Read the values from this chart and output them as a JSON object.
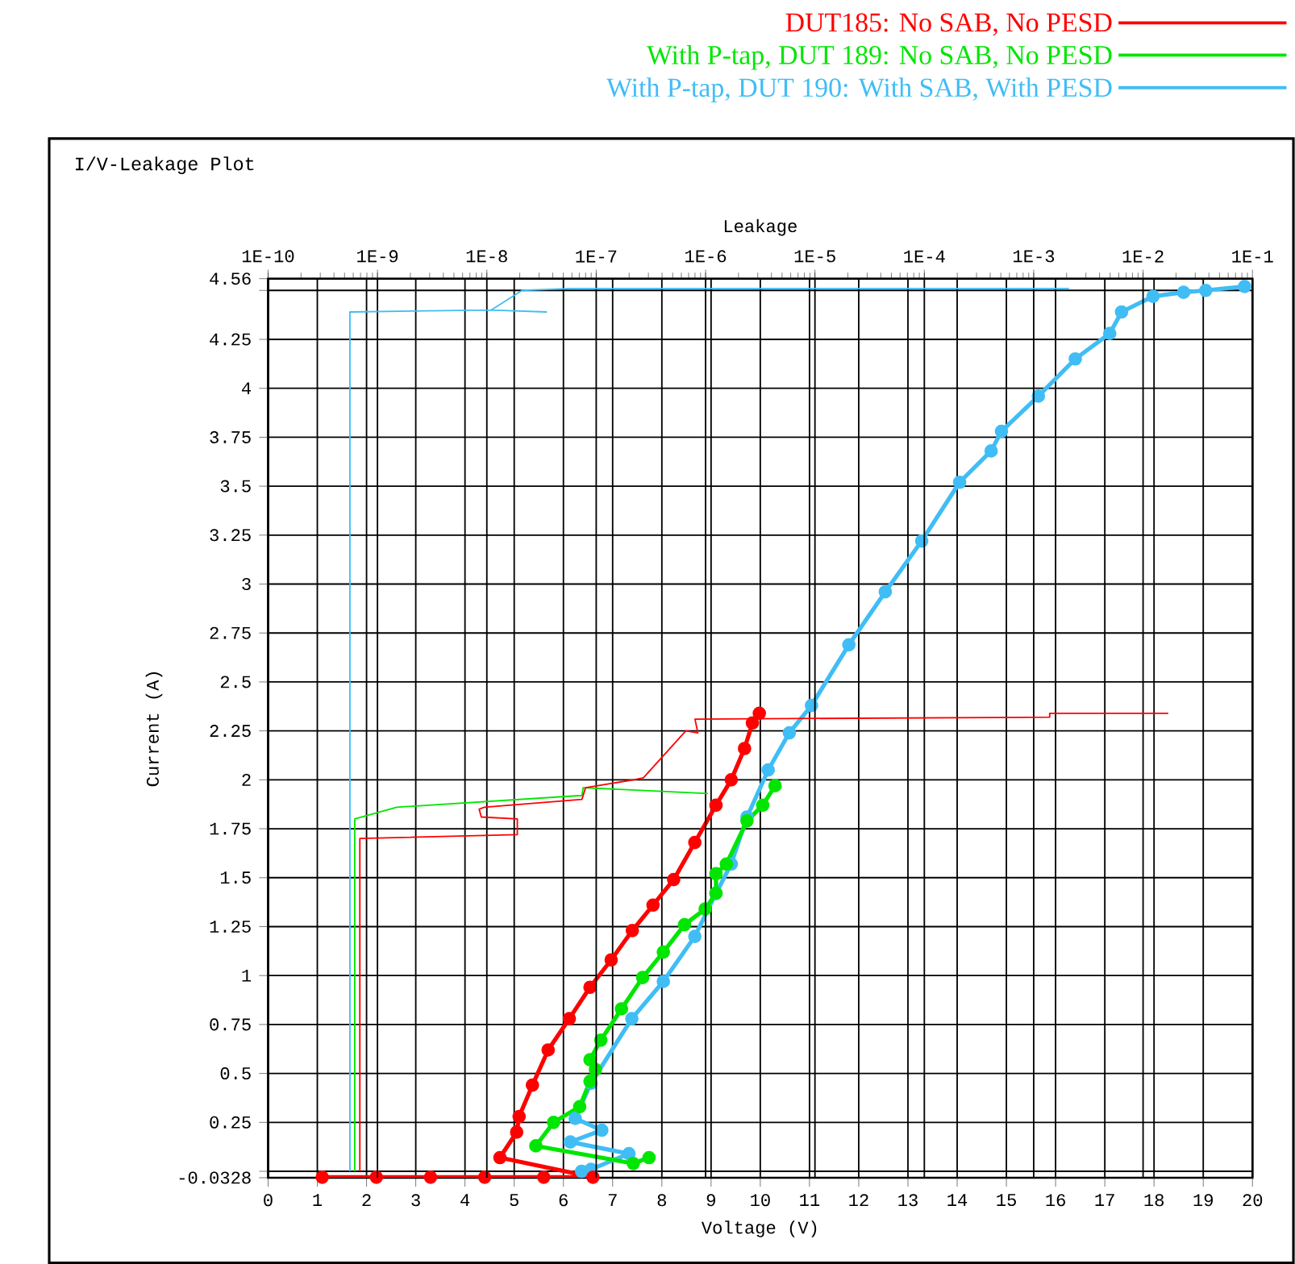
{
  "chart_data": {
    "type": "line",
    "title": "I/V-Leakage Plot",
    "xlabel": "Voltage (V)",
    "ylabel": "Current (A)",
    "x2label": "Leakage",
    "xlim": [
      0,
      20
    ],
    "xticks": [
      0,
      1,
      2,
      3,
      4,
      5,
      6,
      7,
      8,
      9,
      10,
      11,
      12,
      13,
      14,
      15,
      16,
      17,
      18,
      19,
      20
    ],
    "ylim": [
      -0.0328,
      4.56
    ],
    "yticks": [
      -0.0328,
      {
        "value": 0,
        "label": null
      },
      0.25,
      0.5,
      0.75,
      1,
      1.25,
      1.5,
      1.75,
      2,
      2.25,
      2.5,
      2.75,
      3,
      3.25,
      3.5,
      3.75,
      4,
      4.25,
      {
        "value": 4.5,
        "label": null
      },
      4.56
    ],
    "x2lim": [
      1e-10,
      0.1
    ],
    "x2ticks": [
      {
        "value": 1e-10,
        "label": "1E-10"
      },
      {
        "value": 1e-09,
        "label": "1E-9"
      },
      {
        "value": 1e-08,
        "label": "1E-8"
      },
      {
        "value": 1e-07,
        "label": "1E-7"
      },
      {
        "value": 1e-06,
        "label": "1E-6"
      },
      {
        "value": 1e-05,
        "label": "1E-5"
      },
      {
        "value": 0.0001,
        "label": "1E-4"
      },
      {
        "value": 0.001,
        "label": "1E-3"
      },
      {
        "value": 0.01,
        "label": "1E-2"
      },
      {
        "value": 0.1,
        "label": "1E-1"
      }
    ],
    "log": "x2",
    "grid": true,
    "legend": "top right",
    "series": [
      {
        "name": "DUT185: No SAB, No PESD",
        "color": "#ff0000",
        "marker": "circle",
        "x": [
          1.1,
          2.2,
          3.3,
          4.4,
          5.6,
          6.6,
          4.71,
          5.05,
          5.1,
          5.37,
          5.69,
          6.12,
          6.54,
          6.97,
          7.4,
          7.82,
          8.24,
          8.67,
          9.1,
          9.41,
          9.68,
          9.84,
          9.98
        ],
        "values": [
          -0.03,
          -0.03,
          -0.03,
          -0.03,
          -0.03,
          -0.03,
          0.07,
          0.2,
          0.28,
          0.44,
          0.62,
          0.78,
          0.94,
          1.08,
          1.23,
          1.36,
          1.49,
          1.68,
          1.87,
          2.0,
          2.16,
          2.29,
          2.34
        ]
      },
      {
        "name": "With P-tap,  DUT 189: No SAB, No PESD",
        "color": "#00e600",
        "marker": "circle",
        "x": [
          7.74,
          7.42,
          5.44,
          5.8,
          6.33,
          6.54,
          6.65,
          6.54,
          6.76,
          7.18,
          7.61,
          8.03,
          8.46,
          8.88,
          9.1,
          9.1,
          9.31,
          9.73,
          10.05,
          10.3
        ],
        "values": [
          0.07,
          0.04,
          0.13,
          0.25,
          0.33,
          0.46,
          0.52,
          0.57,
          0.67,
          0.83,
          0.99,
          1.12,
          1.26,
          1.34,
          1.42,
          1.52,
          1.57,
          1.79,
          1.87,
          1.97
        ]
      },
      {
        "name": "With P-tap, DUT 190: With SAB, With PESD",
        "color": "#40bdf5",
        "marker": "circle",
        "x": [
          6.37,
          6.56,
          7.33,
          6.14,
          6.78,
          6.24,
          6.56,
          7.39,
          8.03,
          8.67,
          9.1,
          9.41,
          9.73,
          10.16,
          10.59,
          11.04,
          11.8,
          12.54,
          13.28,
          14.05,
          14.69,
          14.9,
          15.65,
          16.4,
          17.1,
          17.34,
          17.98,
          18.6,
          19.05,
          19.84
        ],
        "values": [
          0,
          0.01,
          0.09,
          0.15,
          0.21,
          0.27,
          0.45,
          0.78,
          0.97,
          1.2,
          1.42,
          1.57,
          1.81,
          2.05,
          2.24,
          2.38,
          2.69,
          2.96,
          3.22,
          3.52,
          3.68,
          3.78,
          3.96,
          4.15,
          4.28,
          4.39,
          4.47,
          4.49,
          4.5,
          4.52
        ]
      },
      {
        "color": "#ff0000",
        "marker": "none",
        "axis": "x2",
        "x": [
          6.9e-10,
          6.9e-10,
          1.9e-08,
          1.9e-08,
          8.9e-09,
          8.5e-09,
          9.5e-09,
          7.4e-08,
          8e-08,
          2.2e-07,
          2.7e-07,
          6.6e-07,
          8.5e-07,
          8e-07,
          0.0014,
          0.0014,
          0.017
        ],
        "values": [
          0,
          1.7,
          1.72,
          1.8,
          1.81,
          1.85,
          1.86,
          1.9,
          1.96,
          2.0,
          2.01,
          2.25,
          2.24,
          2.31,
          2.32,
          2.34,
          2.34
        ]
      },
      {
        "color": "#00e600",
        "marker": "none",
        "axis": "x2",
        "x": [
          6.2e-10,
          6.2e-10,
          1.5e-09,
          7.4e-08,
          7.6e-08,
          1.05e-06
        ],
        "values": [
          0,
          1.8,
          1.86,
          1.92,
          1.96,
          1.93
        ]
      },
      {
        "color": "#40bdf5",
        "marker": "none",
        "axis": "x2",
        "x": [
          5.6e-10,
          5.6e-10,
          1.1e-08,
          3.5e-08,
          1.1e-08,
          2.1e-08,
          5.9e-08,
          0.0021
        ],
        "values": [
          0,
          4.39,
          4.4,
          4.39,
          4.4,
          4.5,
          4.51,
          4.51
        ]
      }
    ]
  }
}
